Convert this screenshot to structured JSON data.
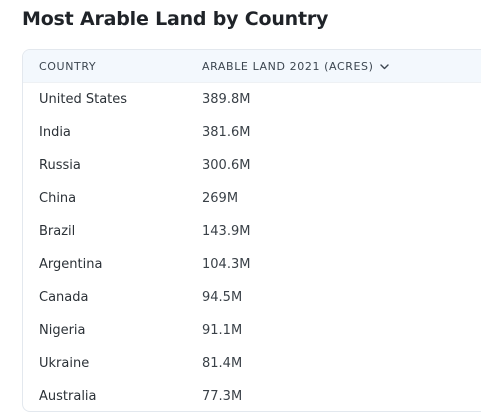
{
  "title": "Most Arable Land by Country",
  "table": {
    "columns": {
      "country": "COUNTRY",
      "arable_land": "ARABLE LAND 2021 (ACRES)"
    },
    "sort_icon": "chevron-down-icon",
    "rows": [
      {
        "country": "United States",
        "arable_land": "389.8M"
      },
      {
        "country": "India",
        "arable_land": "381.6M"
      },
      {
        "country": "Russia",
        "arable_land": "300.6M"
      },
      {
        "country": "China",
        "arable_land": "269M"
      },
      {
        "country": "Brazil",
        "arable_land": "143.9M"
      },
      {
        "country": "Argentina",
        "arable_land": "104.3M"
      },
      {
        "country": "Canada",
        "arable_land": "94.5M"
      },
      {
        "country": "Nigeria",
        "arable_land": "91.1M"
      },
      {
        "country": "Ukraine",
        "arable_land": "81.4M"
      },
      {
        "country": "Australia",
        "arable_land": "77.3M"
      }
    ]
  }
}
